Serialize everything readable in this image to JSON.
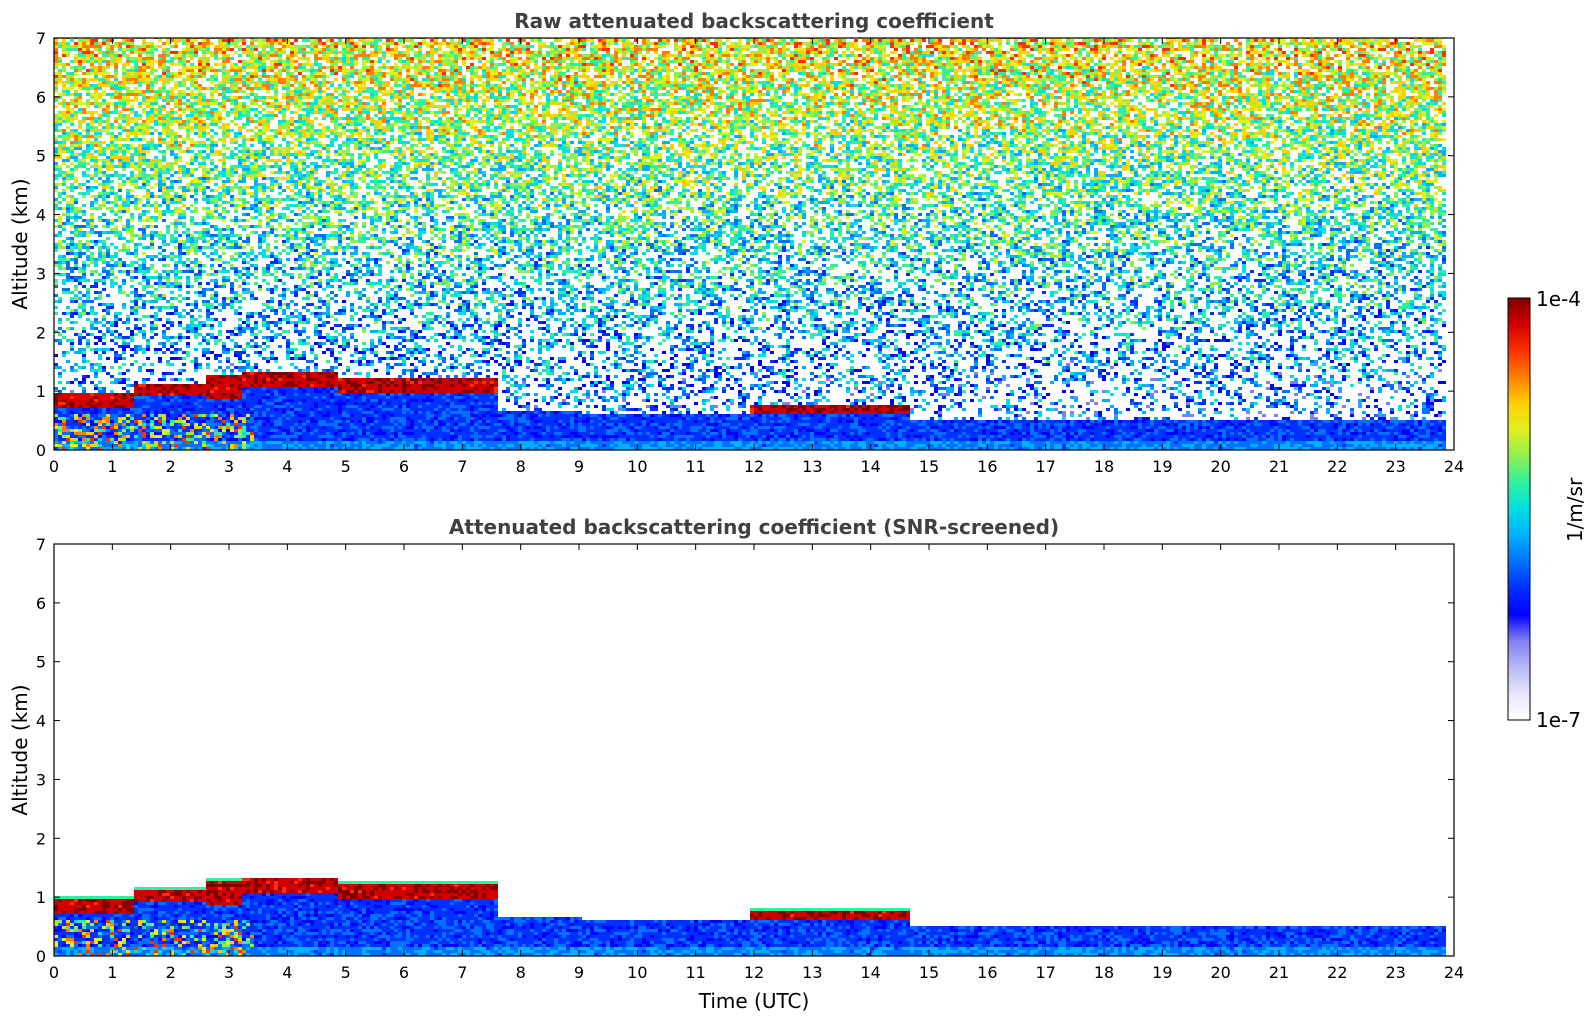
{
  "chart_data": [
    {
      "type": "heatmap",
      "title": "Raw attenuated backscattering coefficient",
      "xlabel": "",
      "ylabel": "Altitude (km)",
      "xlim": [
        0,
        24
      ],
      "ylim": [
        0,
        7
      ],
      "x_ticks": [
        "0",
        "1",
        "2",
        "3",
        "4",
        "5",
        "6",
        "7",
        "8",
        "9",
        "10",
        "11",
        "12",
        "13",
        "14",
        "15",
        "16",
        "17",
        "18",
        "19",
        "20",
        "21",
        "22",
        "23",
        "24"
      ],
      "y_ticks": [
        "0",
        "1",
        "2",
        "3",
        "4",
        "5",
        "6",
        "7"
      ],
      "data_end_time": 23.8,
      "features": {
        "boundary_layer_top_km": [
          [
            0,
            0.95
          ],
          [
            2,
            0.9
          ],
          [
            4,
            0.8
          ],
          [
            8,
            0.65
          ],
          [
            12,
            0.6
          ],
          [
            16,
            0.5
          ],
          [
            20,
            0.5
          ],
          [
            23.8,
            0.5
          ]
        ],
        "cloud_layers": [
          {
            "t_start": 0.0,
            "t_end": 1.35,
            "base_km": 0.72,
            "top_km": 0.95
          },
          {
            "t_start": 1.35,
            "t_end": 2.6,
            "base_km": 0.9,
            "top_km": 1.1
          },
          {
            "t_start": 2.6,
            "t_end": 3.25,
            "base_km": 0.85,
            "top_km": 1.25
          },
          {
            "t_start": 3.25,
            "t_end": 4.9,
            "base_km": 1.05,
            "top_km": 1.3
          },
          {
            "t_start": 4.9,
            "t_end": 7.6,
            "base_km": 0.95,
            "top_km": 1.2
          },
          {
            "t_start": 11.9,
            "t_end": 14.7,
            "base_km": 0.6,
            "top_km": 0.78
          }
        ],
        "noise_increases_with_altitude": true
      }
    },
    {
      "type": "heatmap",
      "title": "Attenuated backscattering coefficient (SNR-screened)",
      "xlabel": "Time (UTC)",
      "ylabel": "Altitude (km)",
      "xlim": [
        0,
        24
      ],
      "ylim": [
        0,
        7
      ],
      "x_ticks": [
        "0",
        "1",
        "2",
        "3",
        "4",
        "5",
        "6",
        "7",
        "8",
        "9",
        "10",
        "11",
        "12",
        "13",
        "14",
        "15",
        "16",
        "17",
        "18",
        "19",
        "20",
        "21",
        "22",
        "23",
        "24"
      ],
      "y_ticks": [
        "0",
        "1",
        "2",
        "3",
        "4",
        "5",
        "6",
        "7"
      ],
      "data_end_time": 23.8,
      "features": {
        "screened_above_signal": true
      }
    }
  ],
  "colorbar": {
    "max_label": "1e-4",
    "min_label": "1e-7",
    "unit_label": "1/m/sr",
    "colors": [
      "#ffffff",
      "#e6e6fa",
      "#b8b8f5",
      "#8080f0",
      "#0000ff",
      "#0030ff",
      "#0070ff",
      "#00b0ff",
      "#00e0e0",
      "#30f0a0",
      "#90f050",
      "#e0f020",
      "#ffd000",
      "#ff8000",
      "#ff3000",
      "#d00000",
      "#800000"
    ]
  }
}
